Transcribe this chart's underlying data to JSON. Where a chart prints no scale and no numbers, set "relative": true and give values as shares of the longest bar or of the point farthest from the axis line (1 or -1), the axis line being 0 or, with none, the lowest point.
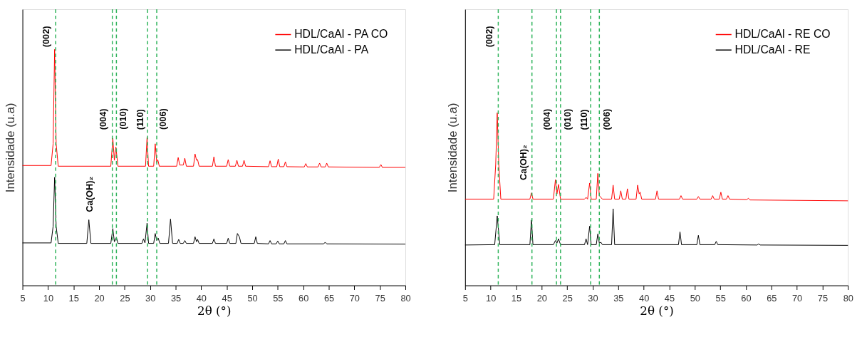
{
  "chart_data": [
    {
      "type": "line",
      "relative": true,
      "xlabel": "2θ (°)",
      "ylabel": "Intensidade (u.a)",
      "xlim": [
        5,
        80
      ],
      "xticks": [
        5,
        10,
        15,
        20,
        25,
        30,
        35,
        40,
        45,
        50,
        55,
        60,
        65,
        70,
        75,
        80
      ],
      "tick_labels": "x",
      "grid": false,
      "legend": "top right",
      "line_style": "solid",
      "marker": "none",
      "series": [
        {
          "name": "HDL/CaAl - PA CO",
          "color": "#ff0000",
          "x": [
            5,
            10.6,
            11.0,
            11.3,
            11.6,
            12,
            22.3,
            22.7,
            23.0,
            23.3,
            23.7,
            29.1,
            29.4,
            29.7,
            30.7,
            31.0,
            31.3,
            31.5,
            31.8,
            35.2,
            35.5,
            35.8,
            36.5,
            36.8,
            37.1,
            38.5,
            38.8,
            39.1,
            39.3,
            39.6,
            42.2,
            42.5,
            42.8,
            45.0,
            45.3,
            45.6,
            46.7,
            47.0,
            47.3,
            48.1,
            48.4,
            48.7,
            53.2,
            53.5,
            53.8,
            54.8,
            55.1,
            55.4,
            56.2,
            56.5,
            56.8,
            60.2,
            60.5,
            60.8,
            62.9,
            63.2,
            63.5,
            64.3,
            64.6,
            64.9,
            74.9,
            75.2,
            75.5,
            80
          ],
          "values": [
            0.508,
            0.508,
            0.6,
            1.0,
            0.6,
            0.505,
            0.505,
            0.623,
            0.53,
            0.586,
            0.505,
            0.505,
            0.626,
            0.505,
            0.505,
            0.6,
            0.52,
            0.533,
            0.505,
            0.505,
            0.542,
            0.51,
            0.51,
            0.539,
            0.505,
            0.505,
            0.557,
            0.53,
            0.533,
            0.505,
            0.505,
            0.545,
            0.505,
            0.505,
            0.533,
            0.505,
            0.505,
            0.53,
            0.505,
            0.505,
            0.53,
            0.505,
            0.503,
            0.528,
            0.503,
            0.503,
            0.535,
            0.503,
            0.503,
            0.524,
            0.503,
            0.502,
            0.516,
            0.502,
            0.502,
            0.518,
            0.502,
            0.502,
            0.518,
            0.502,
            0.5,
            0.512,
            0.5,
            0.5
          ]
        },
        {
          "name": "HDL/CaAl - PA",
          "color": "#000000",
          "x": [
            5,
            10.6,
            11.0,
            11.3,
            11.6,
            12,
            17.6,
            18.0,
            18.4,
            22.3,
            22.7,
            23.0,
            23.4,
            23.7,
            28.4,
            28.7,
            29.0,
            29.4,
            29.7,
            30.7,
            31.0,
            31.3,
            31.6,
            31.9,
            33.6,
            34.0,
            34.4,
            35.3,
            35.6,
            35.9,
            36.5,
            36.8,
            37.1,
            38.5,
            38.8,
            39.1,
            39.3,
            39.6,
            42.2,
            42.5,
            42.8,
            45.0,
            45.3,
            45.6,
            46.8,
            47.1,
            47.5,
            47.8,
            50.4,
            50.7,
            51.0,
            53.2,
            53.5,
            53.8,
            54.7,
            55.0,
            55.3,
            56.2,
            56.5,
            56.8,
            64.0,
            64.3,
            64.6,
            80
          ],
          "values": [
            0.18,
            0.18,
            0.25,
            0.458,
            0.25,
            0.178,
            0.178,
            0.278,
            0.178,
            0.178,
            0.241,
            0.185,
            0.203,
            0.178,
            0.178,
            0.197,
            0.18,
            0.264,
            0.178,
            0.178,
            0.22,
            0.19,
            0.2,
            0.178,
            0.178,
            0.281,
            0.178,
            0.178,
            0.195,
            0.178,
            0.178,
            0.19,
            0.178,
            0.178,
            0.206,
            0.185,
            0.195,
            0.178,
            0.178,
            0.197,
            0.178,
            0.178,
            0.2,
            0.178,
            0.178,
            0.22,
            0.205,
            0.178,
            0.178,
            0.206,
            0.178,
            0.176,
            0.19,
            0.176,
            0.176,
            0.188,
            0.176,
            0.176,
            0.19,
            0.176,
            0.176,
            0.183,
            0.176,
            0.175
          ]
        }
      ],
      "ref_lines": [
        {
          "axis": "x",
          "value": 11.5,
          "color": "#2eb35a",
          "line_style": "dashed"
        },
        {
          "axis": "x",
          "value": 22.6,
          "color": "#2eb35a",
          "line_style": "dashed"
        },
        {
          "axis": "x",
          "value": 23.4,
          "color": "#2eb35a",
          "line_style": "dashed"
        },
        {
          "axis": "x",
          "value": 29.5,
          "color": "#2eb35a",
          "line_style": "dashed"
        },
        {
          "axis": "x",
          "value": 31.3,
          "color": "#2eb35a",
          "line_style": "dashed"
        }
      ],
      "annotations": [
        {
          "text": "(002)",
          "x": 11.3,
          "y": 1.0
        },
        {
          "text": "(004)",
          "x": 22.7,
          "y": 0.623
        },
        {
          "text": "(010)",
          "x": 23.3,
          "y": 0.586
        },
        {
          "text": "(110)",
          "x": 29.4,
          "y": 0.626
        },
        {
          "text": "(006)",
          "x": 31.0,
          "y": 0.6
        },
        {
          "text": "Ca(OH)₂",
          "x": 18.0,
          "y": 0.278
        }
      ]
    },
    {
      "type": "line",
      "relative": true,
      "xlabel": "2θ (°)",
      "ylabel": "Intensidade (u.a)",
      "xlim": [
        5,
        80
      ],
      "xticks": [
        5,
        10,
        15,
        20,
        25,
        30,
        35,
        40,
        45,
        50,
        55,
        60,
        65,
        70,
        75,
        80
      ],
      "tick_labels": "x",
      "grid": false,
      "legend": "top right",
      "line_style": "solid",
      "marker": "none",
      "series": [
        {
          "name": "HDL/CaAl - RE CO",
          "color": "#ff0000",
          "x": [
            5,
            10.6,
            11.0,
            11.3,
            11.6,
            12,
            17.7,
            18.0,
            18.3,
            22.3,
            22.7,
            23.0,
            23.3,
            23.7,
            28.4,
            28.7,
            29.0,
            29.4,
            29.7,
            30.7,
            31.0,
            31.3,
            31.6,
            31.9,
            33.7,
            34.0,
            34.3,
            35.2,
            35.5,
            35.8,
            36.5,
            36.8,
            37.1,
            38.5,
            38.8,
            39.1,
            39.3,
            39.6,
            42.3,
            42.6,
            42.9,
            47.0,
            47.3,
            47.6,
            50.4,
            50.7,
            51.0,
            53.2,
            53.5,
            53.8,
            54.8,
            55.1,
            55.4,
            56.2,
            56.5,
            56.8,
            60.2,
            60.5,
            60.8,
            80
          ],
          "values": [
            0.5,
            0.5,
            0.7,
            1.0,
            0.7,
            0.5,
            0.5,
            0.536,
            0.5,
            0.5,
            0.613,
            0.53,
            0.585,
            0.5,
            0.5,
            0.51,
            0.5,
            0.593,
            0.5,
            0.5,
            0.649,
            0.52,
            0.51,
            0.5,
            0.5,
            0.581,
            0.5,
            0.5,
            0.548,
            0.5,
            0.5,
            0.56,
            0.5,
            0.5,
            0.581,
            0.53,
            0.54,
            0.5,
            0.5,
            0.548,
            0.5,
            0.5,
            0.52,
            0.5,
            0.5,
            0.515,
            0.5,
            0.5,
            0.52,
            0.5,
            0.5,
            0.54,
            0.5,
            0.5,
            0.52,
            0.5,
            0.497,
            0.505,
            0.495,
            0.49
          ]
        },
        {
          "name": "HDL/CaAl - RE",
          "color": "#000000",
          "x": [
            5,
            10.8,
            11.3,
            11.8,
            17.7,
            18.0,
            18.3,
            22.3,
            22.7,
            23.0,
            23.3,
            23.7,
            28.4,
            28.7,
            29.0,
            29.4,
            29.7,
            30.7,
            31.0,
            31.3,
            31.6,
            31.9,
            33.7,
            34.0,
            34.3,
            46.8,
            47.1,
            47.4,
            50.4,
            50.7,
            51.0,
            53.9,
            54.2,
            54.5,
            62.2,
            62.5,
            62.8,
            80
          ],
          "values": [
            0.234,
            0.236,
            0.403,
            0.236,
            0.236,
            0.379,
            0.236,
            0.236,
            0.26,
            0.245,
            0.27,
            0.236,
            0.236,
            0.27,
            0.236,
            0.343,
            0.236,
            0.236,
            0.298,
            0.245,
            0.25,
            0.236,
            0.236,
            0.444,
            0.236,
            0.236,
            0.31,
            0.236,
            0.236,
            0.29,
            0.236,
            0.236,
            0.255,
            0.236,
            0.234,
            0.24,
            0.234,
            0.232
          ]
        }
      ],
      "ref_lines": [
        {
          "axis": "x",
          "value": 11.5,
          "color": "#2eb35a",
          "line_style": "dashed"
        },
        {
          "axis": "x",
          "value": 18.1,
          "color": "#2eb35a",
          "line_style": "dashed"
        },
        {
          "axis": "x",
          "value": 22.9,
          "color": "#2eb35a",
          "line_style": "dashed"
        },
        {
          "axis": "x",
          "value": 23.7,
          "color": "#2eb35a",
          "line_style": "dashed"
        },
        {
          "axis": "x",
          "value": 29.6,
          "color": "#2eb35a",
          "line_style": "dashed"
        },
        {
          "axis": "x",
          "value": 31.3,
          "color": "#2eb35a",
          "line_style": "dashed"
        }
      ],
      "annotations": [
        {
          "text": "(002)",
          "x": 11.5,
          "y": 1.38
        },
        {
          "text": "Ca(OH)₂",
          "x": 18.0,
          "y": 0.536
        },
        {
          "text": "(004)",
          "x": 22.9,
          "y": 0.9
        },
        {
          "text": "(010)",
          "x": 23.7,
          "y": 0.9
        },
        {
          "text": "(110)",
          "x": 29.6,
          "y": 0.9
        },
        {
          "text": "(006)",
          "x": 31.3,
          "y": 0.9
        }
      ]
    }
  ]
}
